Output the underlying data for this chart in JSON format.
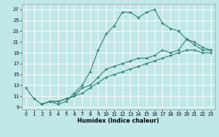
{
  "xlabel": "Humidex (Indice chaleur)",
  "background_color": "#c0e8e8",
  "grid_color": "#ffffff",
  "line_color": "#2a7a6a",
  "xlim": [
    -0.5,
    23.5
  ],
  "ylim": [
    8.5,
    28.0
  ],
  "xticks": [
    0,
    1,
    2,
    3,
    4,
    5,
    6,
    7,
    8,
    9,
    10,
    11,
    12,
    13,
    14,
    15,
    16,
    17,
    18,
    19,
    20,
    21,
    22,
    23
  ],
  "yticks": [
    9,
    11,
    13,
    15,
    17,
    19,
    21,
    23,
    25,
    27
  ],
  "line1_x": [
    0,
    1,
    2,
    3,
    4,
    5,
    6,
    7,
    8,
    9,
    10,
    11,
    12,
    13,
    14,
    15,
    16,
    17,
    18,
    19
  ],
  "line1_y": [
    12.5,
    10.5,
    9.5,
    10.0,
    9.5,
    10.0,
    11.5,
    13.0,
    15.5,
    19.5,
    22.5,
    24.0,
    26.5,
    26.5,
    25.5,
    26.5,
    27.0,
    24.5,
    23.5,
    23.0
  ],
  "line2_x": [
    19,
    20,
    21,
    22,
    23
  ],
  "line2_y": [
    23.0,
    21.5,
    20.5,
    19.5,
    19.5
  ],
  "line3_x": [
    2,
    3,
    4,
    5,
    6,
    7,
    8,
    9,
    10,
    11,
    12,
    13,
    14,
    15,
    16,
    17,
    18,
    19,
    20,
    21,
    22,
    23
  ],
  "line3_y": [
    9.5,
    10.0,
    10.0,
    10.5,
    11.0,
    11.5,
    12.5,
    13.5,
    14.5,
    15.0,
    15.5,
    16.0,
    16.5,
    17.0,
    17.5,
    18.0,
    18.5,
    19.0,
    19.5,
    19.5,
    19.0,
    19.0
  ],
  "line4_x": [
    2,
    3,
    4,
    5,
    6,
    7,
    8,
    9,
    10,
    11,
    12,
    13,
    14,
    15,
    16,
    17,
    18,
    19,
    20,
    21,
    22,
    23
  ],
  "line4_y": [
    9.5,
    10.0,
    10.0,
    10.5,
    11.0,
    12.5,
    13.0,
    14.5,
    16.0,
    16.5,
    17.0,
    17.5,
    18.0,
    18.0,
    18.5,
    19.5,
    19.0,
    19.5,
    21.5,
    21.0,
    20.0,
    19.5
  ]
}
